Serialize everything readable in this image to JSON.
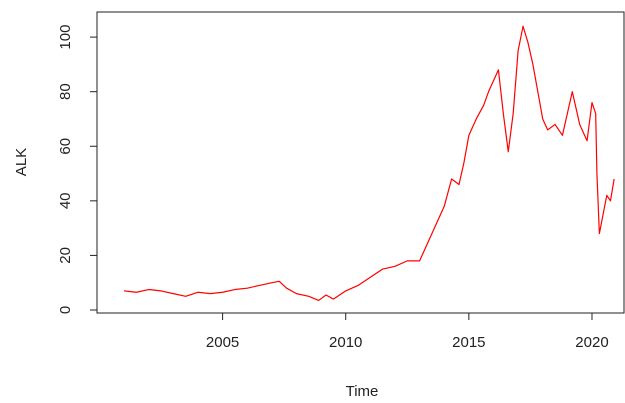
{
  "chart_data": {
    "type": "line",
    "xlabel": "Time",
    "ylabel": "ALK",
    "x": [
      2001.0,
      2001.5,
      2002.0,
      2002.5,
      2003.0,
      2003.5,
      2004.0,
      2004.5,
      2005.0,
      2005.5,
      2006.0,
      2006.5,
      2007.0,
      2007.3,
      2007.6,
      2008.0,
      2008.5,
      2008.9,
      2009.2,
      2009.5,
      2010.0,
      2010.5,
      2011.0,
      2011.5,
      2012.0,
      2012.5,
      2013.0,
      2013.3,
      2013.6,
      2014.0,
      2014.3,
      2014.6,
      2014.8,
      2015.0,
      2015.3,
      2015.6,
      2015.8,
      2016.0,
      2016.2,
      2016.4,
      2016.6,
      2016.8,
      2017.0,
      2017.2,
      2017.4,
      2017.6,
      2017.8,
      2018.0,
      2018.2,
      2018.5,
      2018.8,
      2019.0,
      2019.2,
      2019.5,
      2019.8,
      2020.0,
      2020.15,
      2020.2,
      2020.3,
      2020.45,
      2020.6,
      2020.75,
      2020.9
    ],
    "series": [
      {
        "name": "ALK",
        "color": "#ff0000",
        "values": [
          7,
          6.5,
          7.5,
          7,
          6,
          5,
          6.5,
          6,
          6.5,
          7.5,
          8,
          9,
          10,
          10.5,
          8,
          6,
          5,
          3.5,
          5.5,
          4,
          7,
          9,
          12,
          15,
          16,
          18,
          18,
          24,
          30,
          38,
          48,
          46,
          54,
          64,
          70,
          75,
          80,
          84,
          88,
          72,
          58,
          72,
          95,
          104,
          98,
          90,
          80,
          70,
          66,
          68,
          64,
          72,
          80,
          68,
          62,
          76,
          72,
          50,
          28,
          35,
          42,
          40,
          48
        ]
      }
    ],
    "xlim": [
      1999.9,
      2021.3
    ],
    "xticks": [
      2005,
      2010,
      2015,
      2020
    ],
    "ylim": [
      -1.1,
      109.2
    ],
    "yticks": [
      0,
      20,
      40,
      60,
      80,
      100
    ]
  }
}
